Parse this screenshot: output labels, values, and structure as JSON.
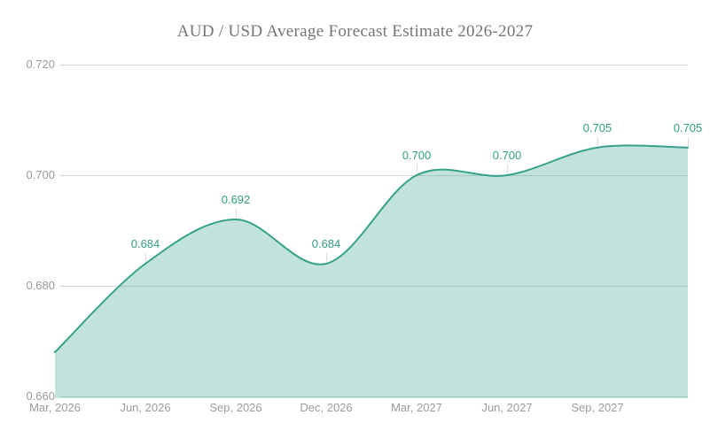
{
  "chart_data": {
    "type": "area",
    "title": "AUD / USD Average Forecast Estimate 2026-2027",
    "categories": [
      "Mar, 2026",
      "Jun, 2026",
      "Sep, 2026",
      "Dec, 2026",
      "Mar, 2027",
      "Jun, 2027",
      "Sep, 2027",
      null
    ],
    "values": [
      0.668,
      0.684,
      0.692,
      0.684,
      0.7,
      0.7,
      0.705,
      0.705
    ],
    "point_labels": [
      "",
      "0.684",
      "0.692",
      "0.684",
      "0.700",
      "0.700",
      "0.705",
      "0.705"
    ],
    "y_ticks": [
      "0.660",
      "0.680",
      "0.700",
      "0.720"
    ],
    "xlabel": "",
    "ylabel": "",
    "ylim": [
      0.66,
      0.7204
    ],
    "grid": "horizontal",
    "legend": "none",
    "curve": "smooth-spline",
    "colors": {
      "line": "#35a287",
      "fill": "#35a287",
      "fill_opacity": 0.3,
      "point_label": "#2f9e82",
      "grid_line": "#d4d4d4",
      "axis_label": "#9b9b9b",
      "title": "#757575",
      "background": "#ffffff"
    }
  }
}
